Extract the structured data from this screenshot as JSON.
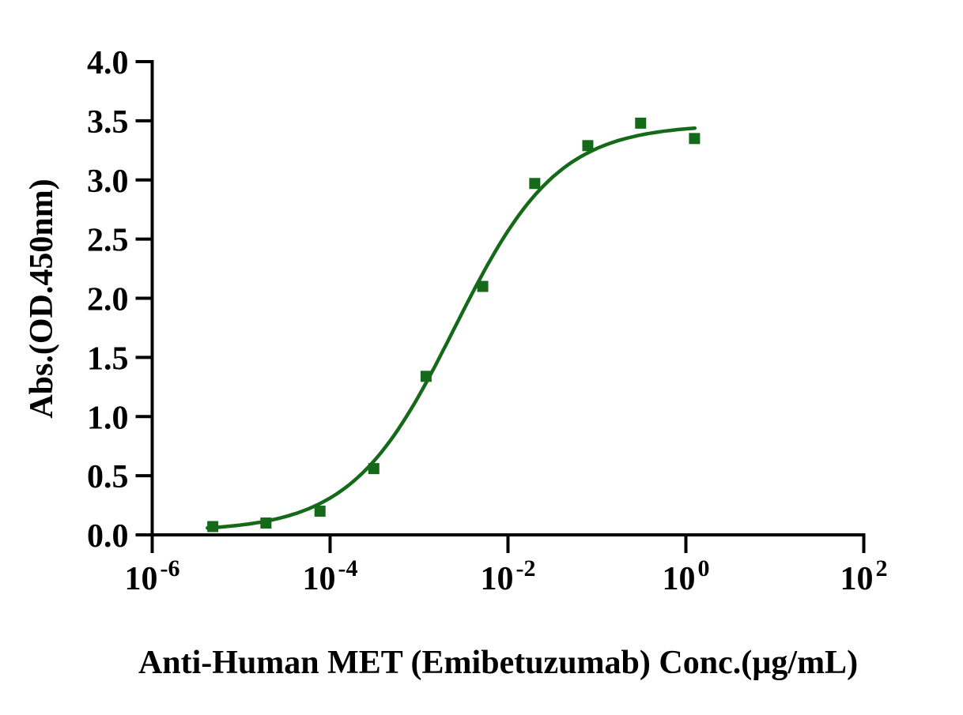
{
  "figure": {
    "background": "#ffffff",
    "axis_color": "#000000"
  },
  "chart_data": {
    "type": "scatter",
    "title": "",
    "xlabel": "Anti-Human MET (Emibetuzumab) Conc.(µg/mL)",
    "ylabel": "Abs.(OD.450nm)",
    "x_scale": "log10",
    "xlim_log": [
      -6,
      2
    ],
    "ylim": [
      0,
      4
    ],
    "grid": false,
    "legend": "none",
    "x_ticks": [
      {
        "log_value": -6,
        "base": "10",
        "exponent": "-6"
      },
      {
        "log_value": -4,
        "base": "10",
        "exponent": "-4"
      },
      {
        "log_value": -2,
        "base": "10",
        "exponent": "-2"
      },
      {
        "log_value": 0,
        "base": "10",
        "exponent": "0"
      },
      {
        "log_value": 2,
        "base": "10",
        "exponent": "2"
      }
    ],
    "y_ticks": [
      {
        "value": 0.0,
        "label": "0.0"
      },
      {
        "value": 0.5,
        "label": "0.5"
      },
      {
        "value": 1.0,
        "label": "1.0"
      },
      {
        "value": 1.5,
        "label": "1.5"
      },
      {
        "value": 2.0,
        "label": "2.0"
      },
      {
        "value": 2.5,
        "label": "2.5"
      },
      {
        "value": 3.0,
        "label": "3.0"
      },
      {
        "value": 3.5,
        "label": "3.5"
      },
      {
        "value": 4.0,
        "label": "4.0"
      }
    ],
    "series": [
      {
        "name": "Anti-Human MET (Emibetuzumab)",
        "color": "#146a19",
        "marker": "square",
        "marker_size_px": 14,
        "points": [
          {
            "conc_ug_ml": 4.8e-06,
            "abs": 0.07
          },
          {
            "conc_ug_ml": 1.9e-05,
            "abs": 0.1
          },
          {
            "conc_ug_ml": 7.7e-05,
            "abs": 0.2
          },
          {
            "conc_ug_ml": 0.00031,
            "abs": 0.56
          },
          {
            "conc_ug_ml": 0.0012,
            "abs": 1.34
          },
          {
            "conc_ug_ml": 0.0052,
            "abs": 2.1
          },
          {
            "conc_ug_ml": 0.02,
            "abs": 2.97
          },
          {
            "conc_ug_ml": 0.079,
            "abs": 3.29
          },
          {
            "conc_ug_ml": 0.31,
            "abs": 3.48
          },
          {
            "conc_ug_ml": 1.25,
            "abs": 3.35
          }
        ],
        "fit_curve": {
          "model": "4PL",
          "bottom": 0.03,
          "top": 3.47,
          "log_ec50": -2.6,
          "hill": 0.75,
          "log_domain": [
            -5.38,
            0.1
          ]
        }
      }
    ]
  }
}
